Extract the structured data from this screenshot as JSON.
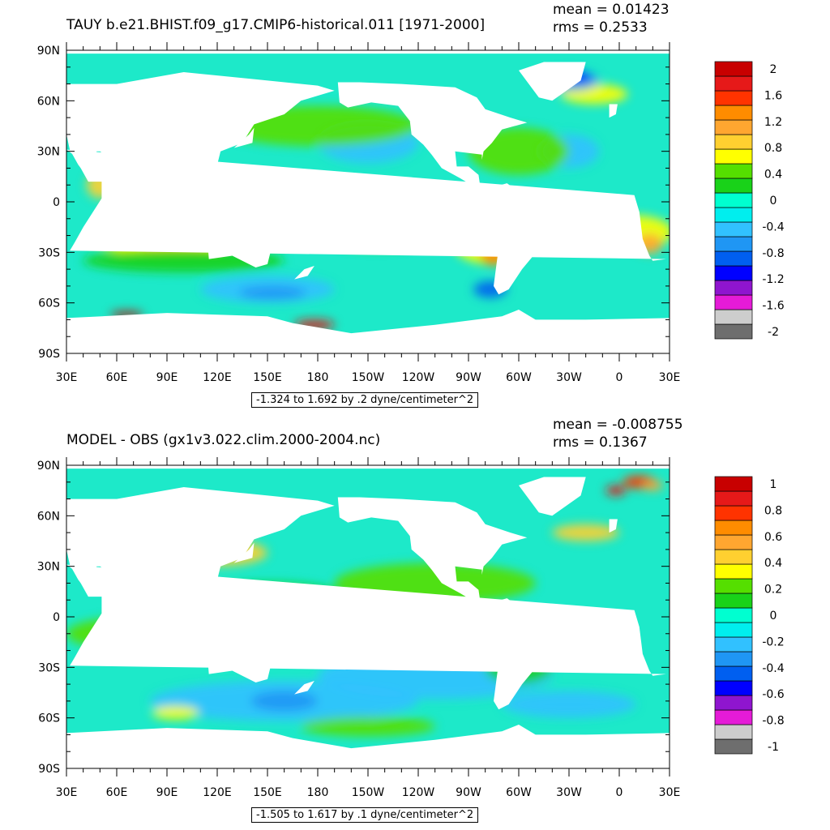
{
  "colors": {
    "labelbar_top": [
      "#6e6e6e",
      "#cdcdcd",
      "#e51bd7",
      "#8f15cf",
      "#0000ff",
      "#005ff0",
      "#1f96f4",
      "#31c1ff",
      "#00eeee",
      "#00ffd0",
      "#19d219",
      "#55df00",
      "#ffff00",
      "#ffd030",
      "#ffa630",
      "#ff8c00",
      "#ff3300",
      "#e61919",
      "#c80000"
    ],
    "labelbar_bottom": [
      "#6e6e6e",
      "#cdcdcd",
      "#e51bd7",
      "#8f15cf",
      "#0000ff",
      "#005ff0",
      "#1f96f4",
      "#31c1ff",
      "#00eeee",
      "#00ffd0",
      "#19d219",
      "#55df00",
      "#ffff00",
      "#ffd030",
      "#ffa630",
      "#ff8c00",
      "#ff3300",
      "#e61919",
      "#c80000"
    ],
    "ocean_base_top": "#1de9c9",
    "ocean_base_bottom": "#1de9c9",
    "land": "#ffffff"
  },
  "axes": {
    "lat_labels": [
      "90N",
      "60N",
      "30N",
      "0",
      "30S",
      "60S",
      "90S"
    ],
    "lon_labels": [
      "30E",
      "60E",
      "90E",
      "120E",
      "150E",
      "180",
      "150W",
      "120W",
      "90W",
      "60W",
      "30W",
      "0",
      "30E"
    ]
  },
  "panels": {
    "top": {
      "title": "TAUY b.e21.BHIST.f09_g17.CMIP6-historical.011 [1971-2000]",
      "mean": "mean = 0.01423",
      "rms": "rms = 0.2533",
      "info": "-1.324 to 1.692 by .2 dyne/centimeter^2",
      "labelbar_labels": [
        "2",
        "1.6",
        "1.2",
        "0.8",
        "0.4",
        "0",
        "-0.4",
        "-0.8",
        "-1.2",
        "-1.6",
        "-2"
      ]
    },
    "bottom": {
      "title": "MODEL - OBS (gx1v3.022.clim.2000-2004.nc)",
      "mean": "mean = -0.008755",
      "rms": "rms = 0.1367",
      "info": "-1.505 to 1.617 by .1 dyne/centimeter^2",
      "labelbar_labels": [
        "1",
        "0.8",
        "0.6",
        "0.4",
        "0.2",
        "0",
        "-0.2",
        "-0.4",
        "-0.6",
        "-0.8",
        "-1"
      ]
    }
  }
}
